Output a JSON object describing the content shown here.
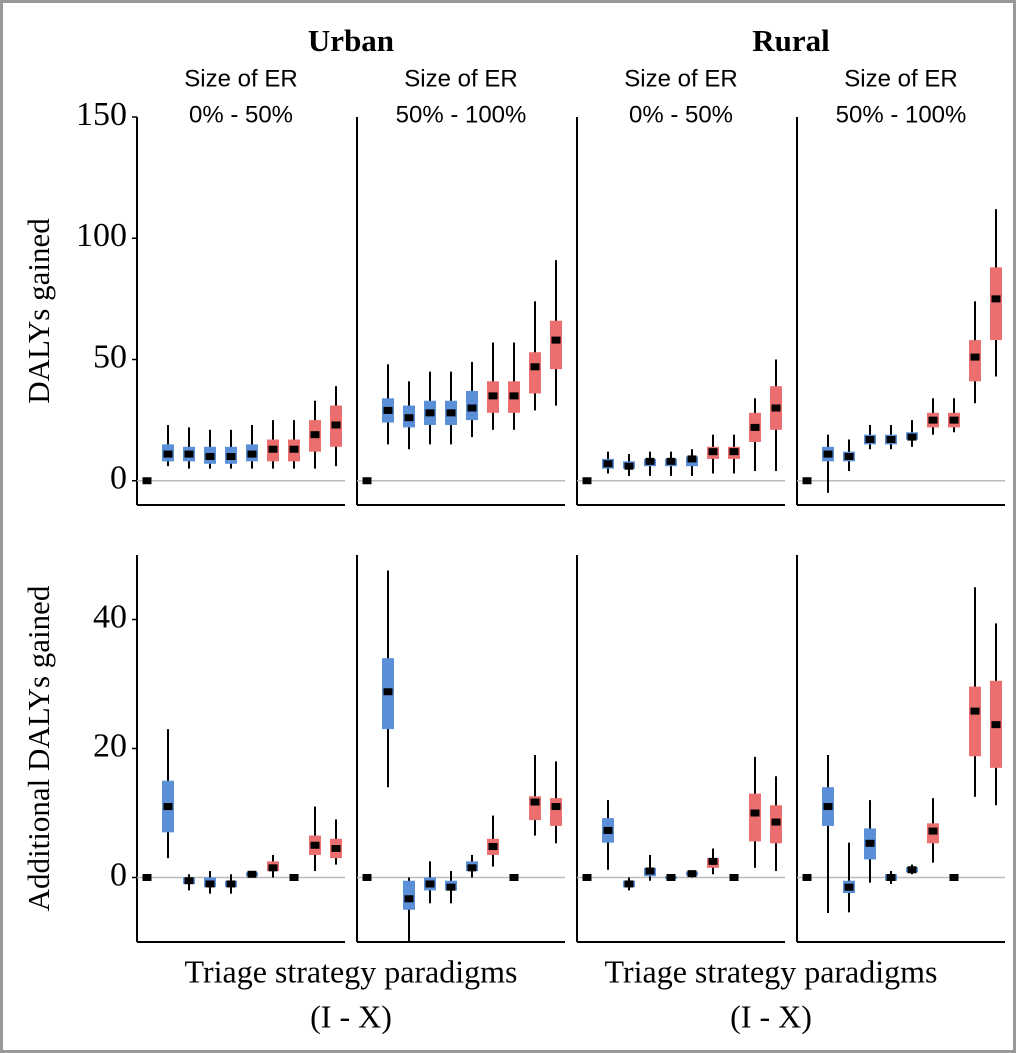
{
  "figure": {
    "columns": [
      "Urban",
      "Rural"
    ],
    "x_labels": [
      [
        "Triage strategy paradigms",
        "(I - X)"
      ],
      [
        "Triage strategy paradigms",
        "(I - X)"
      ]
    ]
  },
  "chart_data": [
    {
      "type": "box",
      "ylabel": "DALYs gained",
      "subtitle": [
        "Size of ER",
        "0% - 50%"
      ],
      "ylim": [
        -10,
        150
      ],
      "yticks": [
        0,
        50,
        100,
        150
      ],
      "hline": 0,
      "colors": [
        "#5b8fd8",
        "#5b8fd8",
        "#5b8fd8",
        "#5b8fd8",
        "#5b8fd8",
        "#5b8fd8",
        "#ec6f6f",
        "#ec6f6f",
        "#ec6f6f",
        "#ec6f6f"
      ],
      "low": [
        0,
        6,
        5,
        5,
        5,
        5,
        5,
        5,
        5,
        6
      ],
      "q1": [
        0,
        8,
        8,
        7,
        7,
        8,
        8,
        8,
        12,
        14
      ],
      "median": [
        0,
        11,
        11,
        10,
        10,
        11,
        13,
        13,
        19,
        23
      ],
      "q3": [
        0,
        15,
        14,
        14,
        14,
        15,
        17,
        17,
        25,
        31
      ],
      "high": [
        0,
        23,
        22,
        21,
        21,
        23,
        25,
        25,
        33,
        39
      ]
    },
    {
      "type": "box",
      "subtitle": [
        "Size of ER",
        "50% - 100%"
      ],
      "ylim": [
        -10,
        150
      ],
      "hline": 0,
      "colors": [
        "#5b8fd8",
        "#5b8fd8",
        "#5b8fd8",
        "#5b8fd8",
        "#5b8fd8",
        "#5b8fd8",
        "#ec6f6f",
        "#ec6f6f",
        "#ec6f6f",
        "#ec6f6f"
      ],
      "low": [
        0,
        15,
        13,
        15,
        15,
        18,
        21,
        21,
        29,
        31
      ],
      "q1": [
        0,
        24,
        22,
        23,
        23,
        25,
        28,
        28,
        36,
        46
      ],
      "median": [
        0,
        29,
        26,
        28,
        28,
        30,
        35,
        35,
        47,
        58
      ],
      "q3": [
        0,
        34,
        31,
        33,
        33,
        37,
        41,
        41,
        53,
        66
      ],
      "high": [
        0,
        48,
        41,
        45,
        45,
        49,
        57,
        57,
        74,
        91
      ]
    },
    {
      "type": "box",
      "subtitle": [
        "Size of ER",
        "0% - 50%"
      ],
      "ylim": [
        -10,
        150
      ],
      "hline": 0,
      "colors": [
        "#5b8fd8",
        "#5b8fd8",
        "#5b8fd8",
        "#5b8fd8",
        "#5b8fd8",
        "#5b8fd8",
        "#ec6f6f",
        "#ec6f6f",
        "#ec6f6f",
        "#ec6f6f"
      ],
      "low": [
        0,
        3,
        2,
        2,
        2,
        2,
        3,
        3,
        4,
        4
      ],
      "q1": [
        0,
        5,
        5,
        6,
        6,
        6,
        9,
        9,
        16,
        21
      ],
      "median": [
        0,
        7,
        6,
        8,
        8,
        9,
        12,
        12,
        22,
        30
      ],
      "q3": [
        0,
        9,
        8,
        9,
        9,
        10,
        14,
        14,
        28,
        39
      ],
      "high": [
        0,
        12,
        11,
        12,
        12,
        13,
        19,
        19,
        34,
        50
      ]
    },
    {
      "type": "box",
      "subtitle": [
        "Size of ER",
        "50% - 100%"
      ],
      "ylim": [
        -10,
        150
      ],
      "hline": 0,
      "colors": [
        "#5b8fd8",
        "#5b8fd8",
        "#5b8fd8",
        "#5b8fd8",
        "#5b8fd8",
        "#5b8fd8",
        "#ec6f6f",
        "#ec6f6f",
        "#ec6f6f",
        "#ec6f6f"
      ],
      "low": [
        0,
        -5,
        4,
        13,
        13,
        14,
        19,
        20,
        32,
        43
      ],
      "q1": [
        0,
        8,
        8,
        15,
        15,
        17,
        22,
        22,
        41,
        58
      ],
      "median": [
        0,
        11,
        10,
        17,
        17,
        18,
        25,
        25,
        51,
        75
      ],
      "q3": [
        0,
        14,
        12,
        19,
        19,
        20,
        28,
        28,
        58,
        88
      ],
      "high": [
        0,
        19,
        17,
        23,
        23,
        25,
        34,
        34,
        74,
        112
      ]
    },
    {
      "type": "box",
      "ylabel": "Additional DALYs gained",
      "ylim": [
        -10,
        50
      ],
      "yticks": [
        0,
        20,
        40
      ],
      "hline": 0,
      "colors": [
        "#5b8fd8",
        "#5b8fd8",
        "#5b8fd8",
        "#5b8fd8",
        "#5b8fd8",
        "#5b8fd8",
        "#ec6f6f",
        "#ec6f6f",
        "#ec6f6f",
        "#ec6f6f"
      ],
      "low": [
        0,
        3,
        -2,
        -2.5,
        -2.5,
        0,
        0,
        0,
        1,
        2
      ],
      "q1": [
        0,
        7,
        -1,
        -1.5,
        -1.5,
        0.2,
        1,
        0,
        3.5,
        3
      ],
      "median": [
        0,
        11,
        -0.5,
        -1,
        -1,
        0.5,
        1.5,
        0,
        5,
        4.5
      ],
      "q3": [
        0,
        15,
        0,
        0,
        -0.5,
        0.8,
        2.5,
        0,
        6.5,
        6
      ],
      "high": [
        0,
        23,
        0.5,
        1,
        0.5,
        1,
        3.5,
        0,
        11,
        9
      ]
    },
    {
      "type": "box",
      "ylim": [
        -10,
        50
      ],
      "hline": 0,
      "colors": [
        "#5b8fd8",
        "#5b8fd8",
        "#5b8fd8",
        "#5b8fd8",
        "#5b8fd8",
        "#5b8fd8",
        "#ec6f6f",
        "#ec6f6f",
        "#ec6f6f",
        "#ec6f6f"
      ],
      "low": [
        0,
        14,
        -10,
        -4,
        -4,
        0,
        1.7,
        0,
        6.5,
        5.3
      ],
      "q1": [
        0,
        23,
        -5,
        -2,
        -2,
        1,
        3.5,
        0,
        8.9,
        8
      ],
      "median": [
        0,
        28.8,
        -3.3,
        -1,
        -1.5,
        1.5,
        4.8,
        0,
        11.7,
        11
      ],
      "q3": [
        0,
        34,
        -0.5,
        0,
        -0.5,
        2.5,
        6,
        0,
        12.6,
        12.3
      ],
      "high": [
        0,
        47.6,
        0,
        2.5,
        1,
        3.5,
        9.6,
        0,
        19,
        18
      ]
    },
    {
      "type": "box",
      "ylim": [
        -10,
        50
      ],
      "hline": 0,
      "colors": [
        "#5b8fd8",
        "#5b8fd8",
        "#5b8fd8",
        "#5b8fd8",
        "#5b8fd8",
        "#5b8fd8",
        "#ec6f6f",
        "#ec6f6f",
        "#ec6f6f",
        "#ec6f6f"
      ],
      "low": [
        0,
        1.2,
        -2,
        -0.5,
        -0.5,
        0,
        0.5,
        0,
        1.5,
        1
      ],
      "q1": [
        0,
        5.4,
        -1.5,
        0.2,
        -0.2,
        0.3,
        1.5,
        0,
        5.6,
        5.3
      ],
      "median": [
        0,
        7.3,
        -1,
        1,
        0,
        0.6,
        2.5,
        0,
        10,
        8.6
      ],
      "q3": [
        0,
        9.2,
        -0.5,
        1.5,
        0.2,
        0.9,
        3,
        0,
        13,
        11.2
      ],
      "high": [
        0,
        12,
        0,
        3.5,
        0.5,
        1,
        4.5,
        0,
        18.7,
        15.7
      ]
    },
    {
      "type": "box",
      "ylim": [
        -10,
        50
      ],
      "hline": 0,
      "colors": [
        "#5b8fd8",
        "#5b8fd8",
        "#5b8fd8",
        "#5b8fd8",
        "#5b8fd8",
        "#5b8fd8",
        "#ec6f6f",
        "#ec6f6f",
        "#ec6f6f",
        "#ec6f6f"
      ],
      "low": [
        0,
        -5.5,
        -5.4,
        -0.8,
        -1,
        0.5,
        2.3,
        0,
        12.5,
        11.2
      ],
      "q1": [
        0,
        8,
        -2.4,
        2.8,
        -0.5,
        0.8,
        5.3,
        0,
        18.8,
        17
      ],
      "median": [
        0,
        11,
        -1.5,
        5.3,
        0,
        1.2,
        7.2,
        0,
        25.8,
        23.7
      ],
      "q3": [
        0,
        14,
        -0.5,
        7.6,
        0.5,
        1.6,
        8.4,
        0,
        29.6,
        30.5
      ],
      "high": [
        0,
        19,
        5.4,
        12,
        1,
        2,
        12.3,
        0,
        45,
        39.4
      ]
    }
  ]
}
